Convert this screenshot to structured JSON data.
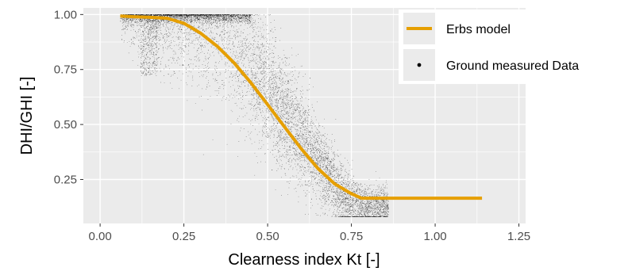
{
  "chart_data": {
    "type": "scatter",
    "xlabel": "Clearness index Kt [-]",
    "ylabel": "DHI/GHI [-]",
    "xlim": [
      -0.05,
      1.27
    ],
    "ylim": [
      0.05,
      1.03
    ],
    "x_ticks": [
      0.0,
      0.25,
      0.5,
      0.75,
      1.0,
      1.25
    ],
    "x_tick_labels": [
      "0.00",
      "0.25",
      "0.50",
      "0.75",
      "1.00",
      "1.25"
    ],
    "y_ticks": [
      0.25,
      0.5,
      0.75,
      1.0
    ],
    "y_tick_labels": [
      "0.25",
      "0.50",
      "0.75",
      "1.00"
    ],
    "grid": true,
    "legend_position": "right",
    "colors": {
      "panel": "#ebebeb",
      "grid": "#ffffff",
      "model": "#e69f00",
      "points": "#000000"
    },
    "series": [
      {
        "name": "Erbs model",
        "kind": "line",
        "x": [
          0.06,
          0.1,
          0.15,
          0.2,
          0.25,
          0.3,
          0.35,
          0.4,
          0.45,
          0.5,
          0.55,
          0.6,
          0.65,
          0.7,
          0.75,
          0.78,
          0.8,
          0.9,
          1.0,
          1.1,
          1.14
        ],
        "y": [
          0.993,
          0.99,
          0.987,
          0.983,
          0.96,
          0.915,
          0.855,
          0.78,
          0.69,
          0.59,
          0.49,
          0.39,
          0.3,
          0.23,
          0.185,
          0.165,
          0.165,
          0.165,
          0.165,
          0.165,
          0.165
        ]
      },
      {
        "name": "Ground measured Data",
        "kind": "points"
      }
    ]
  }
}
